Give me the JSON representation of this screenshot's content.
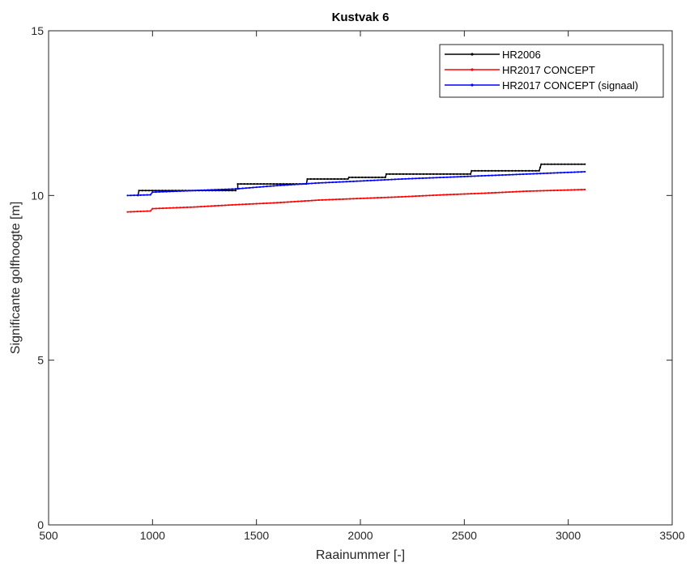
{
  "chart_data": {
    "type": "line",
    "title": "Kustvak 6",
    "xlabel": "Raainummer [-]",
    "ylabel": "Significante golfhoogte [m]",
    "xlim": [
      500,
      3500
    ],
    "ylim": [
      0,
      15
    ],
    "xticks": [
      500,
      1000,
      1500,
      2000,
      2500,
      3000,
      3500
    ],
    "yticks": [
      0,
      5,
      10,
      15
    ],
    "grid": false,
    "legend": "top-right",
    "series": [
      {
        "name": "HR2006",
        "color": "#000000",
        "step": true,
        "points": [
          [
            930,
            10.0
          ],
          [
            935,
            10.15
          ],
          [
            1400,
            10.15
          ],
          [
            1400,
            10.2
          ],
          [
            1410,
            10.2
          ],
          [
            1410,
            10.35
          ],
          [
            1740,
            10.35
          ],
          [
            1745,
            10.5
          ],
          [
            1940,
            10.5
          ],
          [
            1945,
            10.55
          ],
          [
            2120,
            10.55
          ],
          [
            2125,
            10.65
          ],
          [
            2530,
            10.65
          ],
          [
            2535,
            10.75
          ],
          [
            2860,
            10.75
          ],
          [
            2870,
            10.95
          ],
          [
            3080,
            10.95
          ]
        ]
      },
      {
        "name": "HR2017 CONCEPT",
        "color": "#ff0000",
        "step": false,
        "points": [
          [
            880,
            9.5
          ],
          [
            990,
            9.53
          ],
          [
            1000,
            9.6
          ],
          [
            1200,
            9.65
          ],
          [
            1400,
            9.72
          ],
          [
            1600,
            9.78
          ],
          [
            1800,
            9.86
          ],
          [
            2000,
            9.91
          ],
          [
            2200,
            9.96
          ],
          [
            2400,
            10.02
          ],
          [
            2600,
            10.07
          ],
          [
            2800,
            10.13
          ],
          [
            3080,
            10.18
          ]
        ]
      },
      {
        "name": "HR2017 CONCEPT (signaal)",
        "color": "#0000ff",
        "step": false,
        "points": [
          [
            880,
            10.0
          ],
          [
            990,
            10.02
          ],
          [
            1000,
            10.1
          ],
          [
            1200,
            10.15
          ],
          [
            1400,
            10.2
          ],
          [
            1600,
            10.3
          ],
          [
            1800,
            10.38
          ],
          [
            2000,
            10.44
          ],
          [
            2200,
            10.5
          ],
          [
            2400,
            10.55
          ],
          [
            2600,
            10.6
          ],
          [
            2800,
            10.65
          ],
          [
            3080,
            10.72
          ]
        ]
      }
    ]
  }
}
